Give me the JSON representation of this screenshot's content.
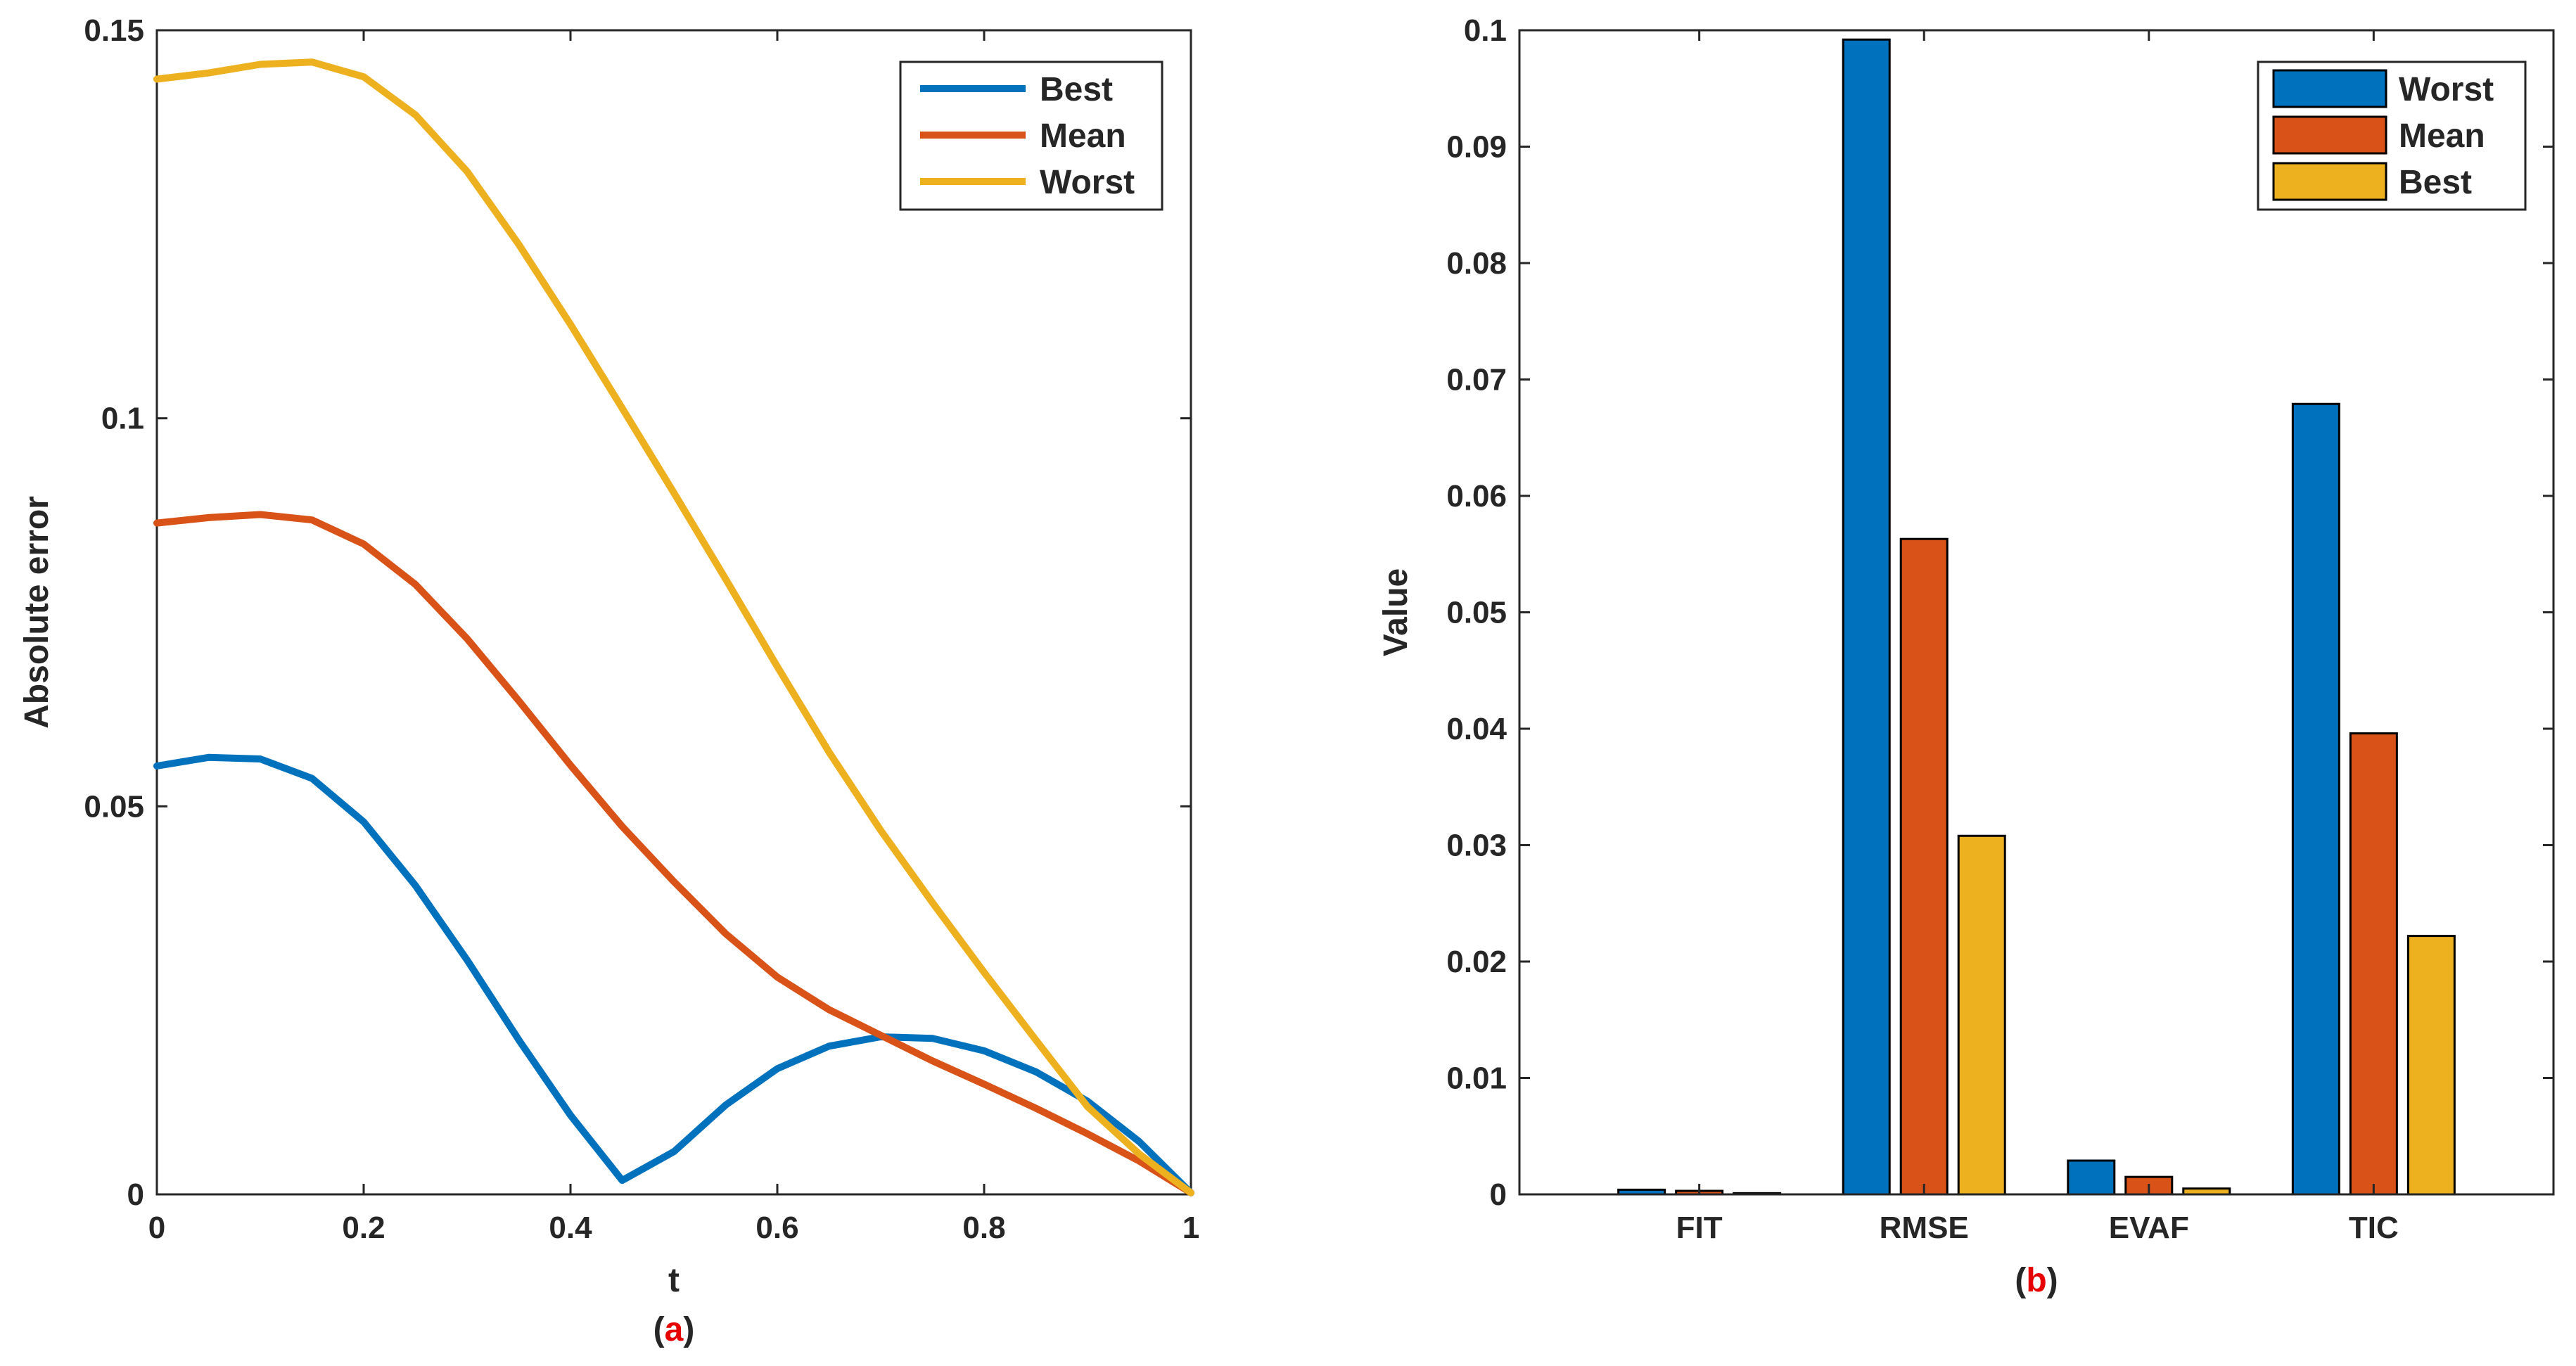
{
  "chart_data": [
    {
      "type": "line",
      "panel_label": {
        "open": "(",
        "letter": "a",
        "close": ")"
      },
      "xlabel": "t",
      "ylabel": "Absolute error",
      "xlim": [
        0,
        1
      ],
      "ylim": [
        0,
        0.15
      ],
      "xticks": [
        0,
        0.2,
        0.4,
        0.6,
        0.8,
        1
      ],
      "yticks": [
        0,
        0.05,
        0.1,
        0.15
      ],
      "xtick_labels": [
        "0",
        "0.2",
        "0.4",
        "0.6",
        "0.8",
        "1"
      ],
      "ytick_labels": [
        "0",
        "0.05",
        "0.1",
        "0.15"
      ],
      "legend_position": "top-right",
      "x": [
        0,
        0.05,
        0.1,
        0.15,
        0.2,
        0.25,
        0.3,
        0.35,
        0.4,
        0.45,
        0.5,
        0.55,
        0.6,
        0.65,
        0.7,
        0.75,
        0.8,
        0.85,
        0.9,
        0.95,
        1
      ],
      "series": [
        {
          "name": "Best",
          "color": "#0072BD",
          "values": [
            0.0552,
            0.0563,
            0.0561,
            0.0536,
            0.048,
            0.0398,
            0.0302,
            0.0199,
            0.0102,
            0.0018,
            0.0055,
            0.0115,
            0.0162,
            0.0191,
            0.0203,
            0.0201,
            0.0185,
            0.0158,
            0.012,
            0.0068,
            0.0002
          ]
        },
        {
          "name": "Mean",
          "color": "#D95319",
          "values": [
            0.0865,
            0.0872,
            0.0876,
            0.0869,
            0.0838,
            0.0786,
            0.0716,
            0.0636,
            0.0553,
            0.0474,
            0.0403,
            0.0336,
            0.028,
            0.0238,
            0.0205,
            0.0172,
            0.0142,
            0.0111,
            0.0078,
            0.0043,
            0.0002
          ]
        },
        {
          "name": "Worst",
          "color": "#EDB120",
          "values": [
            0.1437,
            0.1445,
            0.1456,
            0.1459,
            0.144,
            0.1391,
            0.1318,
            0.1224,
            0.1121,
            0.1013,
            0.0904,
            0.0793,
            0.068,
            0.057,
            0.0469,
            0.0376,
            0.0286,
            0.0199,
            0.0113,
            0.0052,
            0.0002
          ]
        }
      ]
    },
    {
      "type": "bar",
      "panel_label": {
        "open": "(",
        "letter": "b",
        "close": ")"
      },
      "xlabel": "",
      "ylabel": "Value",
      "ylim": [
        0,
        0.1
      ],
      "yticks": [
        0,
        0.01,
        0.02,
        0.03,
        0.04,
        0.05,
        0.06,
        0.07,
        0.08,
        0.09,
        0.1
      ],
      "ytick_labels": [
        "0",
        "0.01",
        "0.02",
        "0.03",
        "0.04",
        "0.05",
        "0.06",
        "0.07",
        "0.08",
        "0.09",
        "0.1"
      ],
      "categories": [
        "FIT",
        "RMSE",
        "EVAF",
        "TIC"
      ],
      "legend_position": "top-right",
      "series": [
        {
          "name": "Worst",
          "color": "#0072BD",
          "values": [
            0.0004,
            0.0992,
            0.0029,
            0.0679
          ]
        },
        {
          "name": "Mean",
          "color": "#D95319",
          "values": [
            0.0003,
            0.0563,
            0.0015,
            0.0396
          ]
        },
        {
          "name": "Best",
          "color": "#EDB120",
          "values": [
            0.0001,
            0.0308,
            0.0005,
            0.0222
          ]
        }
      ]
    }
  ],
  "colors": {
    "panel_letter": "#E60000",
    "axis": "#262626"
  }
}
